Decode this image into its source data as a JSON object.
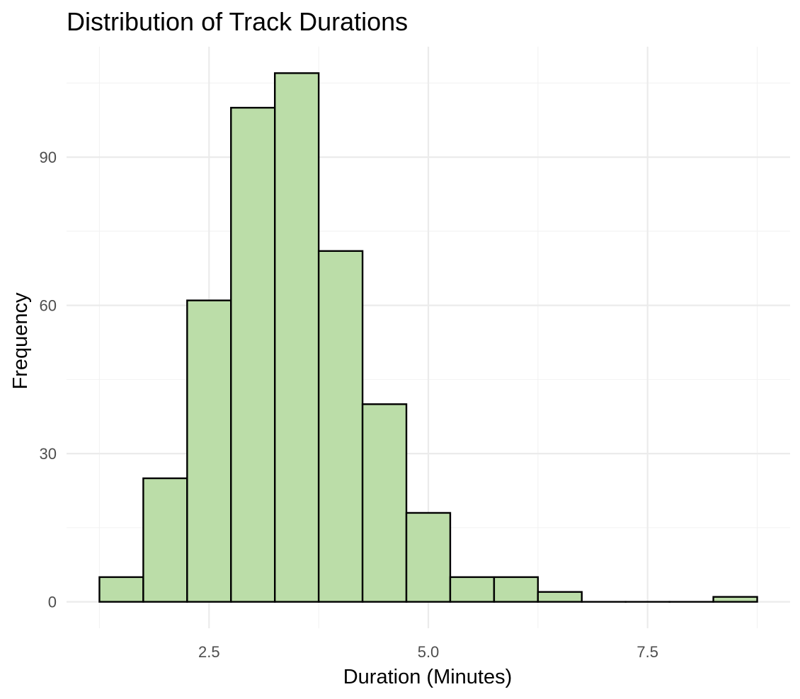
{
  "chart_data": {
    "type": "bar",
    "title": "Distribution of Track Durations",
    "xlabel": "Duration (Minutes)",
    "ylabel": "Frequency",
    "bin_width": 0.5,
    "bins": [
      {
        "x0": 1.25,
        "x1": 1.75,
        "count": 5
      },
      {
        "x0": 1.75,
        "x1": 2.25,
        "count": 25
      },
      {
        "x0": 2.25,
        "x1": 2.75,
        "count": 61
      },
      {
        "x0": 2.75,
        "x1": 3.25,
        "count": 100
      },
      {
        "x0": 3.25,
        "x1": 3.75,
        "count": 107
      },
      {
        "x0": 3.75,
        "x1": 4.25,
        "count": 71
      },
      {
        "x0": 4.25,
        "x1": 4.75,
        "count": 40
      },
      {
        "x0": 4.75,
        "x1": 5.25,
        "count": 18
      },
      {
        "x0": 5.25,
        "x1": 5.75,
        "count": 5
      },
      {
        "x0": 5.75,
        "x1": 6.25,
        "count": 5
      },
      {
        "x0": 6.25,
        "x1": 6.75,
        "count": 2
      },
      {
        "x0": 6.75,
        "x1": 7.25,
        "count": 0
      },
      {
        "x0": 7.25,
        "x1": 7.75,
        "count": 0
      },
      {
        "x0": 7.75,
        "x1": 8.25,
        "count": 0
      },
      {
        "x0": 8.25,
        "x1": 8.75,
        "count": 1
      }
    ],
    "xlim": [
      0.875,
      9.125
    ],
    "ylim": [
      -5.35,
      112.35
    ],
    "x_ticks": [
      2.5,
      5.0,
      7.5
    ],
    "x_tick_labels": [
      "2.5",
      "5.0",
      "7.5"
    ],
    "y_ticks": [
      0,
      30,
      60,
      90
    ],
    "y_tick_labels": [
      "0",
      "30",
      "60",
      "90"
    ],
    "grid": true,
    "legend": "none",
    "colors": {
      "bar_fill": "#bbdda8",
      "bar_stroke": "#000000",
      "grid_major": "#ebebeb",
      "grid_minor": "#f2f2f2",
      "tick_text": "#4d4d4d",
      "title_text": "#000000"
    }
  }
}
